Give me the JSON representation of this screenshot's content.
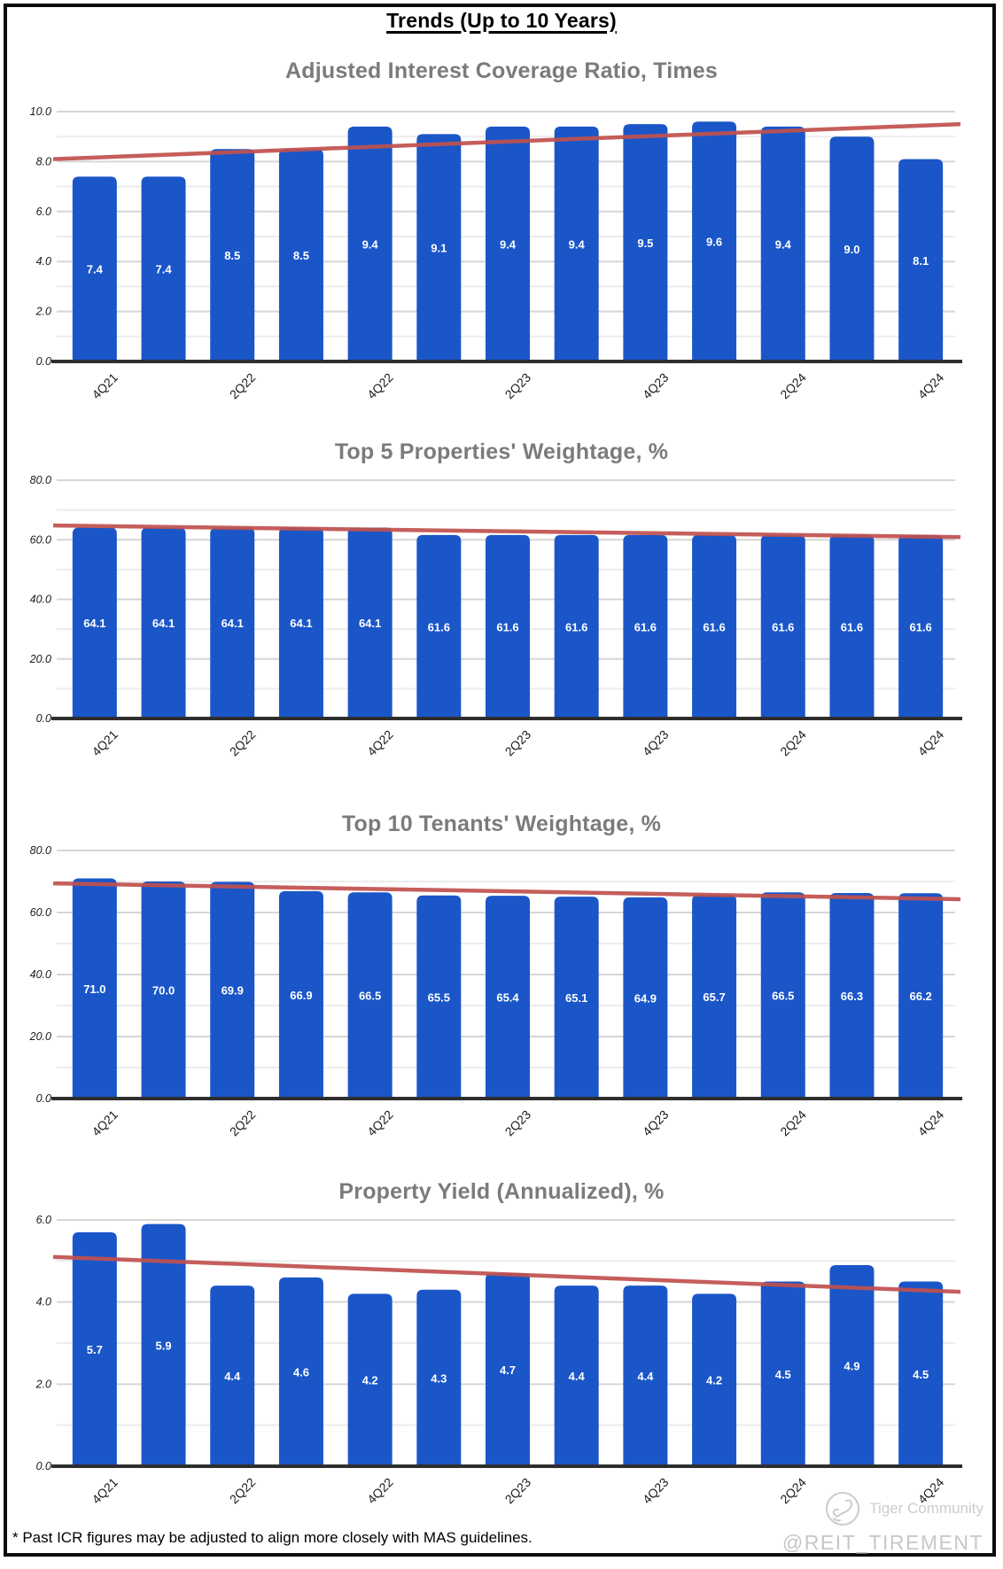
{
  "page": {
    "main_title": "Trends (Up to 10 Years)",
    "footnote": "* Past ICR figures may be adjusted to align more closely with MAS guidelines.",
    "watermark": {
      "community": "Tiger Community",
      "handle": "@REIT_TIREMENT"
    }
  },
  "colors": {
    "bar": "#1a56c8",
    "trend": "#c0504d",
    "chart_title": "#7b7b7b",
    "grid_major": "#d6d6d6",
    "grid_minor": "#ececec",
    "axis": "#2e2e2e",
    "bar_label": "#ffffff",
    "tick_label": "#1a1a1a"
  },
  "categories": [
    "4Q21",
    "",
    "2Q22",
    "",
    "4Q22",
    "",
    "2Q23",
    "",
    "4Q23",
    "",
    "2Q24",
    "",
    "4Q24"
  ],
  "chart_data": [
    {
      "type": "bar",
      "title": "Adjusted Interest Coverage Ratio, Times",
      "values": [
        7.4,
        7.4,
        8.5,
        8.5,
        9.4,
        9.1,
        9.4,
        9.4,
        9.5,
        9.6,
        9.4,
        9.0,
        8.1
      ],
      "ylim": [
        0,
        10
      ],
      "major_step": 2,
      "minor_step": 1,
      "trendline": {
        "start": 8.1,
        "end": 9.5
      },
      "grid": true,
      "legend": "none"
    },
    {
      "type": "bar",
      "title": "Top 5 Properties' Weightage, %",
      "values": [
        64.1,
        64.1,
        64.1,
        64.1,
        64.1,
        61.6,
        61.6,
        61.6,
        61.6,
        61.6,
        61.6,
        61.6,
        61.6
      ],
      "ylim": [
        0,
        80
      ],
      "major_step": 20,
      "minor_step": 10,
      "trendline": {
        "start": 64.8,
        "end": 60.9
      },
      "grid": true,
      "legend": "none"
    },
    {
      "type": "bar",
      "title": "Top 10 Tenants' Weightage, %",
      "values": [
        71.0,
        70.0,
        69.9,
        66.9,
        66.5,
        65.5,
        65.4,
        65.1,
        64.9,
        65.7,
        66.5,
        66.3,
        66.2
      ],
      "ylim": [
        0,
        80
      ],
      "major_step": 20,
      "minor_step": 10,
      "trendline": {
        "start": 69.4,
        "end": 64.3
      },
      "grid": true,
      "legend": "none"
    },
    {
      "type": "bar",
      "title": "Property Yield (Annualized), %",
      "values": [
        5.7,
        5.9,
        4.4,
        4.6,
        4.2,
        4.3,
        4.7,
        4.4,
        4.4,
        4.2,
        4.5,
        4.9,
        4.5
      ],
      "ylim": [
        0,
        6
      ],
      "major_step": 2,
      "minor_step": 1,
      "trendline": {
        "start": 5.1,
        "end": 4.25
      },
      "grid": true,
      "legend": "none"
    }
  ]
}
